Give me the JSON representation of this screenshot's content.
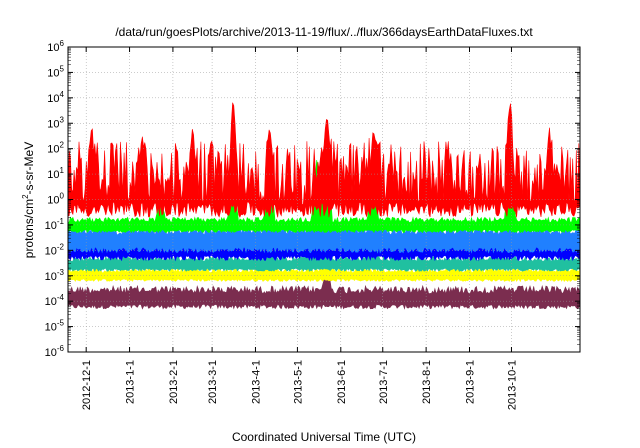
{
  "chart_data": {
    "type": "line",
    "title": "/data/run/goesPlots/archive/2013-11-19/flux/../flux/366daysEarthDataFluxes.txt",
    "xlabel": "Coordinated Universal Time (UTC)",
    "ylabel": "protons/cm2-s-sr-MeV",
    "ylabel_parts": {
      "pre": "protons/cm",
      "sup": "2",
      "post": "-s-sr-MeV"
    },
    "yscale": "log",
    "ylim": [
      1e-06,
      1000000.0
    ],
    "y_ticks": [
      {
        "base": "10",
        "exp": "-6",
        "value": 1e-06
      },
      {
        "base": "10",
        "exp": "-5",
        "value": 1e-05
      },
      {
        "base": "10",
        "exp": "-4",
        "value": 0.0001
      },
      {
        "base": "10",
        "exp": "-3",
        "value": 0.001
      },
      {
        "base": "10",
        "exp": "-2",
        "value": 0.01
      },
      {
        "base": "10",
        "exp": "-1",
        "value": 0.1
      },
      {
        "base": "10",
        "exp": "0",
        "value": 1
      },
      {
        "base": "10",
        "exp": "1",
        "value": 10
      },
      {
        "base": "10",
        "exp": "2",
        "value": 100
      },
      {
        "base": "10",
        "exp": "3",
        "value": 1000
      },
      {
        "base": "10",
        "exp": "4",
        "value": 10000
      },
      {
        "base": "10",
        "exp": "5",
        "value": 100000
      },
      {
        "base": "10",
        "exp": "6",
        "value": 1000000
      }
    ],
    "xlim": [
      "2012-11-18",
      "2013-11-19"
    ],
    "x_ticks": [
      "2012-12-1",
      "2013-1-1",
      "2013-2-1",
      "2013-3-1",
      "2013-4-1",
      "2013-5-1",
      "2013-6-1",
      "2013-7-1",
      "2013-8-1",
      "2013-9-1",
      "2013-10-1"
    ],
    "grid": true,
    "legend": "none",
    "series": [
      {
        "color": "#7b2d4f",
        "low": 5e-05,
        "high": 0.0004,
        "spikes": [
          {
            "x": "2013-5-22",
            "value": 0.002
          }
        ]
      },
      {
        "color": "#ffff00",
        "low": 0.0006,
        "high": 0.002,
        "spikes": [
          {
            "x": "2013-4-11",
            "value": 0.01
          },
          {
            "x": "2013-5-22",
            "value": 0.03
          }
        ]
      },
      {
        "color": "#20c0a0",
        "low": 0.0015,
        "high": 0.006,
        "spikes": [
          {
            "x": "2013-4-11",
            "value": 0.3
          },
          {
            "x": "2013-5-15",
            "value": 0.5
          },
          {
            "x": "2013-5-22",
            "value": 50
          },
          {
            "x": "2013-6-24",
            "value": 0.1
          }
        ]
      },
      {
        "color": "#0000ff",
        "low": 0.004,
        "high": 0.04,
        "spikes": [
          {
            "x": "2013-1-23",
            "value": 0.2
          },
          {
            "x": "2013-3-16",
            "value": 1
          },
          {
            "x": "2013-4-11",
            "value": 10
          },
          {
            "x": "2013-5-15",
            "value": 3
          },
          {
            "x": "2013-5-22",
            "value": 50
          },
          {
            "x": "2013-6-24",
            "value": 5
          },
          {
            "x": "2013-9-30",
            "value": 2
          }
        ]
      },
      {
        "color": "#2080ff",
        "low": 0.008,
        "high": 0.1,
        "spikes": [
          {
            "x": "2013-3-16",
            "value": 2
          },
          {
            "x": "2013-4-11",
            "value": 20
          },
          {
            "x": "2013-5-15",
            "value": 10
          },
          {
            "x": "2013-5-22",
            "value": 100
          },
          {
            "x": "2013-6-24",
            "value": 8
          },
          {
            "x": "2013-9-30",
            "value": 5
          }
        ]
      },
      {
        "color": "#00ff00",
        "low": 0.05,
        "high": 0.2,
        "spikes": [
          {
            "x": "2013-1-23",
            "value": 1
          },
          {
            "x": "2013-3-16",
            "value": 5
          },
          {
            "x": "2013-4-11",
            "value": 30
          },
          {
            "x": "2013-5-15",
            "value": 50
          },
          {
            "x": "2013-5-22",
            "value": 300
          },
          {
            "x": "2013-6-24",
            "value": 20
          },
          {
            "x": "2013-9-30",
            "value": 100
          }
        ]
      },
      {
        "color": "#ff0000",
        "low": 0.2,
        "high": 200,
        "spikes": [
          {
            "x": "2012-12-5",
            "value": 700
          },
          {
            "x": "2013-1-10",
            "value": 300
          },
          {
            "x": "2013-2-15",
            "value": 700
          },
          {
            "x": "2013-3-16",
            "value": 10000
          },
          {
            "x": "2013-4-11",
            "value": 800
          },
          {
            "x": "2013-5-22",
            "value": 2000
          },
          {
            "x": "2013-6-24",
            "value": 500
          },
          {
            "x": "2013-9-30",
            "value": 10000
          },
          {
            "x": "2013-10-28",
            "value": 800
          }
        ]
      }
    ]
  }
}
